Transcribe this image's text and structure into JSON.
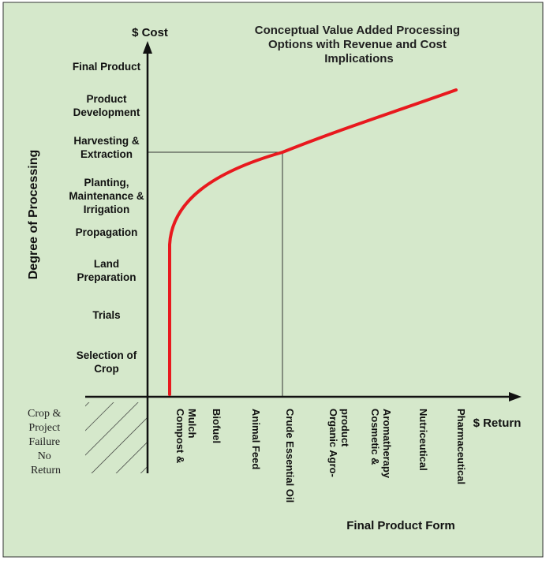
{
  "chart_data": {
    "type": "line",
    "title": "Conceptual Value Added Processing Options with Revenue and Cost Implications",
    "title_lines": [
      "Conceptual Value Added Processing",
      "Options with Revenue and Cost",
      "Implications"
    ],
    "y_axis_top_label": "$ Cost",
    "x_axis_end_label": "$ Return",
    "ylabel": "Degree of Processing",
    "xlabel": "Final Product Form",
    "y_categories": [
      "Selection of Crop",
      "Trials",
      "Land Preparation",
      "Propagation",
      "Planting, Maintenance & Irrigation",
      "Harvesting & Extraction",
      "Product Development",
      "Final Product"
    ],
    "x_categories": [
      "Compost & Mulch",
      "Biofuel",
      "Animal Feed",
      "Crude Essential Oil",
      "Organic Agro-product",
      "Cosmetic & Aromatherapy",
      "Nutriceutical",
      "Pharmaceutical"
    ],
    "negative_region_label": [
      "Crop &",
      "Project",
      "Failure",
      "No",
      "Return"
    ],
    "series": [
      {
        "color": "#e8191e",
        "points": [
          {
            "x": "Compost & Mulch",
            "y": "below Selection of Crop"
          },
          {
            "x": "Compost & Mulch",
            "y": "Propagation"
          },
          {
            "x": "Crude Essential Oil",
            "y": "Harvesting & Extraction"
          },
          {
            "x": "Pharmaceutical",
            "y": "Product Development"
          }
        ]
      }
    ],
    "reference_lines": [
      {
        "from_y": "Harvesting & Extraction",
        "to_x": "Crude Essential Oil"
      }
    ],
    "background_color": "#d5e8cb",
    "grid": false
  }
}
